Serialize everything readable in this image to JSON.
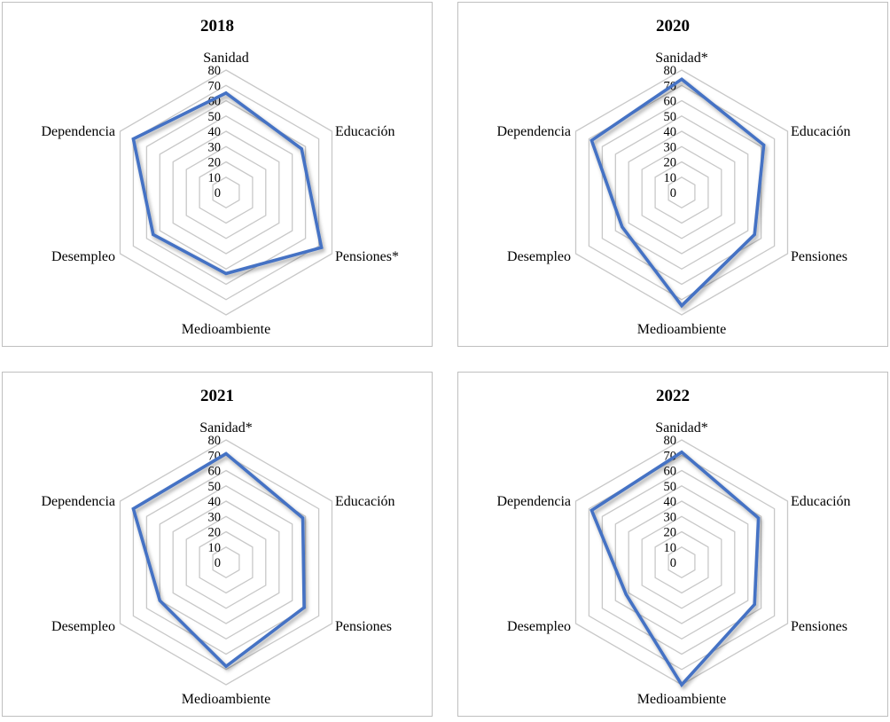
{
  "chart_data": [
    {
      "type": "radar",
      "title": "2018",
      "categories": [
        "Sanidad",
        "Educación",
        "Pensiones*",
        "Medioambiente",
        "Desempleo",
        "Dependencia"
      ],
      "values": [
        65,
        57,
        72,
        53,
        55,
        70
      ],
      "rlim": [
        0,
        80
      ],
      "ticks": [
        "0",
        "10",
        "20",
        "30",
        "40",
        "50",
        "60",
        "70",
        "80"
      ],
      "grid": true,
      "legend": "none",
      "color": "#4472c4"
    },
    {
      "type": "radar",
      "title": "2020",
      "categories": [
        "Sanidad*",
        "Educación",
        "Pensiones",
        "Medioambiente",
        "Desempleo",
        "Dependencia"
      ],
      "values": [
        74,
        62,
        55,
        74,
        45,
        68
      ],
      "rlim": [
        0,
        80
      ],
      "ticks": [
        "0",
        "10",
        "20",
        "30",
        "40",
        "50",
        "60",
        "70",
        "80"
      ],
      "grid": true,
      "legend": "none",
      "color": "#4472c4"
    },
    {
      "type": "radar",
      "title": "2021",
      "categories": [
        "Sanidad*",
        "Educación",
        "Pensiones",
        "Medioambiente",
        "Desempleo",
        "Dependencia"
      ],
      "values": [
        71,
        58,
        59,
        68,
        50,
        70
      ],
      "rlim": [
        0,
        80
      ],
      "ticks": [
        "0",
        "10",
        "20",
        "30",
        "40",
        "50",
        "60",
        "70",
        "80"
      ],
      "grid": true,
      "legend": "none",
      "color": "#4472c4"
    },
    {
      "type": "radar",
      "title": "2022",
      "categories": [
        "Sanidad*",
        "Educación",
        "Pensiones",
        "Medioambiente",
        "Desempleo",
        "Dependencia"
      ],
      "values": [
        72,
        58,
        55,
        80,
        42,
        68
      ],
      "rlim": [
        0,
        80
      ],
      "ticks": [
        "0",
        "10",
        "20",
        "30",
        "40",
        "50",
        "60",
        "70",
        "80"
      ],
      "grid": true,
      "legend": "none",
      "color": "#4472c4"
    }
  ]
}
